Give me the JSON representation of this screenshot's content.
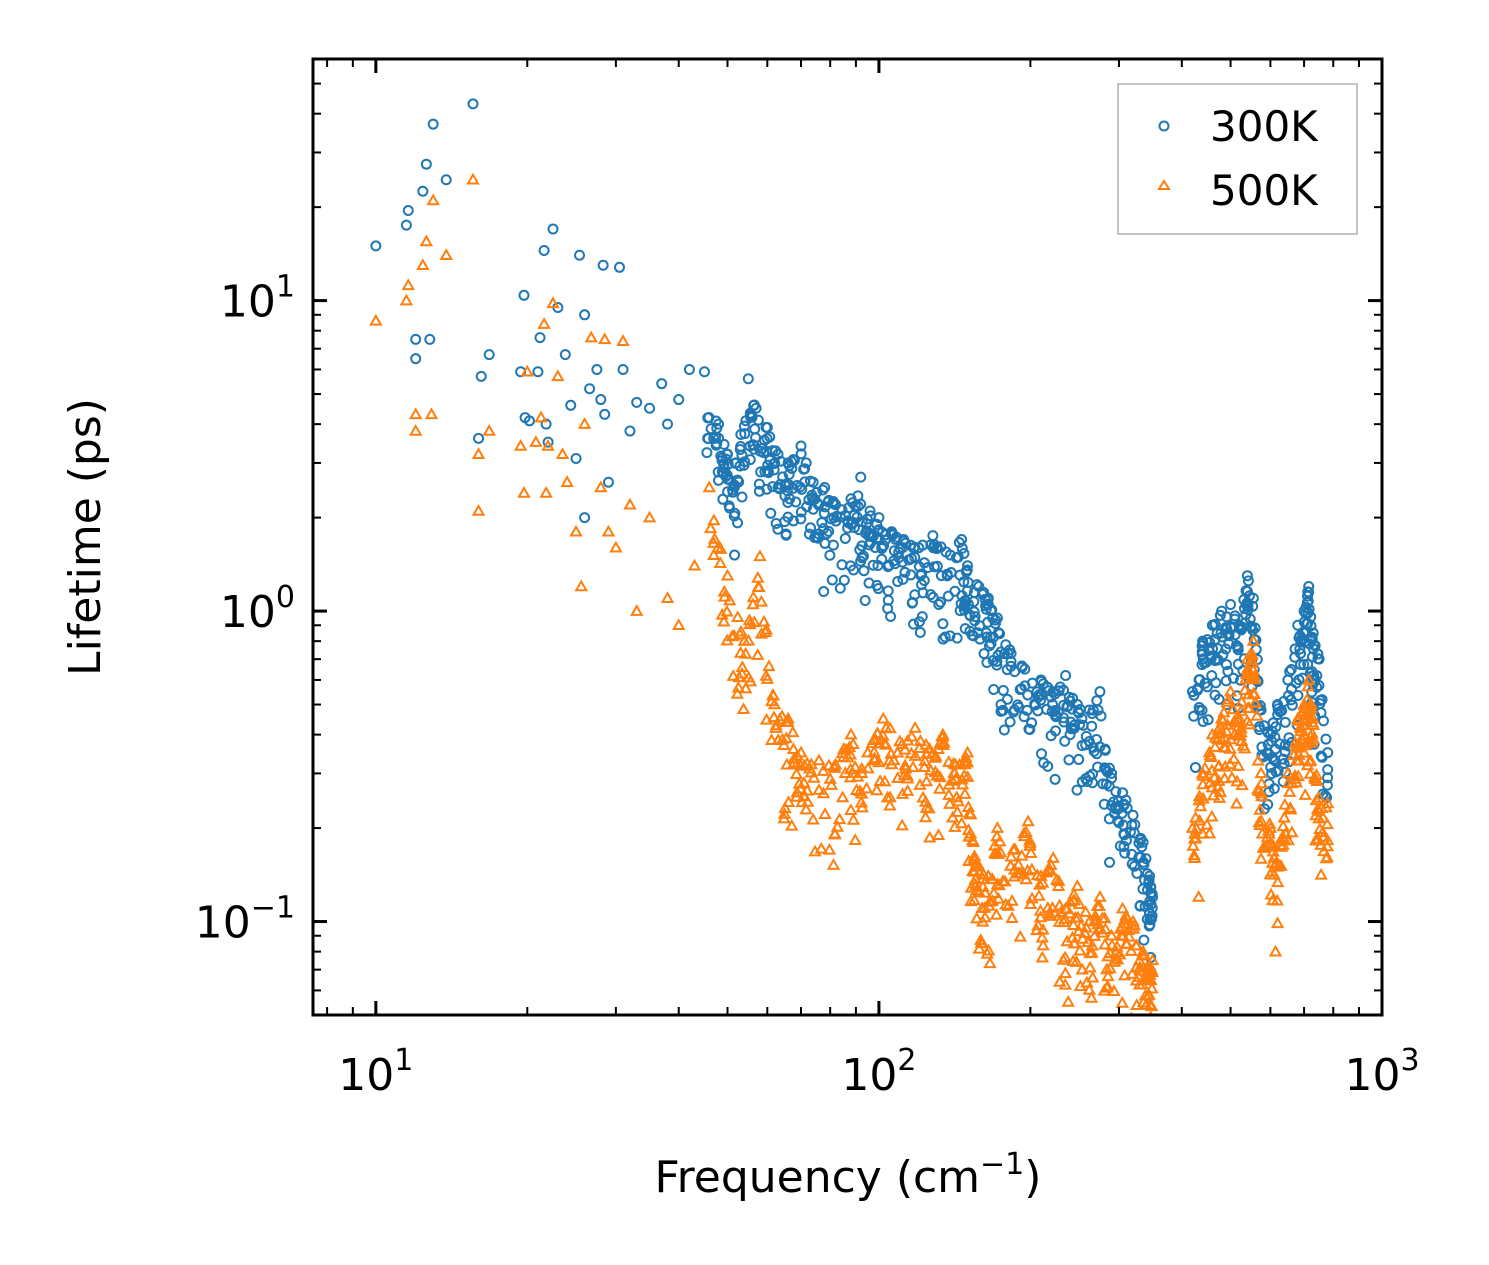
{
  "chart_data": {
    "type": "scatter",
    "title": "",
    "xlabel": "Frequency (cm",
    "xlabel_superscript": "−1",
    "xlabel_suffix": ")",
    "ylabel": "Lifetime (ps)",
    "xscale": "log",
    "yscale": "log",
    "xlim": [
      7.5,
      1000
    ],
    "ylim": [
      0.05,
      60
    ],
    "x_ticks": [
      {
        "value": 10,
        "base": "10",
        "exp": "1"
      },
      {
        "value": 100,
        "base": "10",
        "exp": "2"
      },
      {
        "value": 1000,
        "base": "10",
        "exp": "3"
      }
    ],
    "y_ticks": [
      {
        "value": 0.1,
        "base": "10",
        "exp": "−1"
      },
      {
        "value": 1,
        "base": "10",
        "exp": "0"
      },
      {
        "value": 10,
        "base": "10",
        "exp": "1"
      }
    ],
    "legend_position": "top-right",
    "series": [
      {
        "name": "300K",
        "marker": "circle",
        "color": "#1f77b4",
        "points": [
          [
            10.0,
            15.0
          ],
          [
            11.5,
            17.5
          ],
          [
            11.6,
            19.5
          ],
          [
            12.0,
            7.5
          ],
          [
            12.0,
            6.5
          ],
          [
            12.4,
            22.5
          ],
          [
            12.6,
            27.5
          ],
          [
            12.8,
            7.5
          ],
          [
            13.0,
            37.0
          ],
          [
            13.8,
            24.5
          ],
          [
            15.6,
            43.0
          ],
          [
            16.0,
            3.6
          ],
          [
            16.2,
            5.7
          ],
          [
            16.8,
            6.7
          ],
          [
            19.4,
            5.9
          ],
          [
            19.7,
            10.4
          ],
          [
            19.8,
            4.2
          ],
          [
            20.2,
            4.1
          ],
          [
            21.0,
            5.9
          ],
          [
            21.2,
            7.6
          ],
          [
            21.6,
            14.5
          ],
          [
            21.8,
            4.0
          ],
          [
            22.0,
            3.5
          ],
          [
            22.5,
            17.0
          ],
          [
            23.0,
            9.5
          ],
          [
            23.8,
            6.7
          ],
          [
            24.4,
            4.6
          ],
          [
            25.0,
            3.1
          ],
          [
            25.4,
            14.0
          ],
          [
            26.0,
            9.0
          ],
          [
            26.0,
            2.0
          ],
          [
            26.6,
            5.2
          ],
          [
            27.5,
            6.0
          ],
          [
            28.0,
            4.8
          ],
          [
            28.3,
            13.0
          ],
          [
            28.5,
            4.3
          ],
          [
            29.0,
            2.6
          ],
          [
            30.5,
            12.8
          ],
          [
            31.0,
            6.0
          ],
          [
            32.0,
            3.8
          ],
          [
            33.0,
            4.7
          ],
          [
            35.0,
            4.5
          ],
          [
            37.0,
            5.4
          ],
          [
            38.0,
            4.0
          ],
          [
            40.0,
            4.8
          ],
          [
            42.0,
            6.0
          ],
          [
            45.0,
            5.9
          ],
          [
            48.0,
            4.0
          ],
          [
            50.0,
            3.2
          ],
          [
            52.0,
            3.0
          ],
          [
            55.0,
            5.6
          ],
          [
            57.0,
            4.5
          ],
          [
            60.0,
            3.9
          ],
          [
            63.0,
            3.2
          ],
          [
            66.0,
            3.0
          ],
          [
            70.0,
            3.4
          ],
          [
            74.0,
            2.6
          ],
          [
            78.0,
            2.5
          ],
          [
            82.0,
            2.2
          ],
          [
            88.0,
            2.3
          ],
          [
            92.0,
            2.7
          ],
          [
            96.0,
            2.1
          ],
          [
            100.0,
            2.0
          ],
          [
            106.0,
            1.8
          ],
          [
            112.0,
            1.7
          ],
          [
            120.0,
            1.6
          ],
          [
            128.0,
            1.75
          ],
          [
            136.0,
            1.55
          ],
          [
            146.0,
            1.7
          ],
          [
            150.0,
            1.4
          ],
          [
            158.0,
            1.2
          ],
          [
            165.0,
            1.1
          ],
          [
            172.0,
            0.95
          ],
          [
            182.0,
            0.75
          ],
          [
            195.0,
            0.65
          ],
          [
            210.0,
            0.6
          ],
          [
            222.0,
            0.55
          ],
          [
            235.0,
            0.62
          ],
          [
            248.0,
            0.5
          ],
          [
            262.0,
            0.48
          ],
          [
            275.0,
            0.55
          ],
          [
            290.0,
            0.3
          ],
          [
            305.0,
            0.26
          ],
          [
            320.0,
            0.22
          ],
          [
            335.0,
            0.18
          ],
          [
            345.0,
            0.14
          ],
          [
            350.0,
            0.12
          ],
          [
            420.0,
            0.55
          ],
          [
            440.0,
            0.8
          ],
          [
            460.0,
            0.9
          ],
          [
            480.0,
            1.0
          ],
          [
            500.0,
            1.05
          ],
          [
            520.0,
            0.9
          ],
          [
            540.0,
            1.3
          ],
          [
            555.0,
            1.1
          ],
          [
            575.0,
            0.48
          ],
          [
            600.0,
            0.4
          ],
          [
            620.0,
            0.5
          ],
          [
            650.0,
            0.6
          ],
          [
            680.0,
            0.9
          ],
          [
            700.0,
            1.0
          ],
          [
            715.0,
            1.2
          ],
          [
            730.0,
            0.85
          ],
          [
            750.0,
            0.7
          ],
          [
            780.0,
            0.35
          ]
        ]
      },
      {
        "name": "500K",
        "marker": "triangle",
        "color": "#ff7f0e",
        "points": [
          [
            10.0,
            8.6
          ],
          [
            11.5,
            10.0
          ],
          [
            11.6,
            11.2
          ],
          [
            12.0,
            4.3
          ],
          [
            12.0,
            3.8
          ],
          [
            12.4,
            13.0
          ],
          [
            12.6,
            15.5
          ],
          [
            12.9,
            4.3
          ],
          [
            13.0,
            21.0
          ],
          [
            13.8,
            14.0
          ],
          [
            15.6,
            24.5
          ],
          [
            16.0,
            3.2
          ],
          [
            16.0,
            2.1
          ],
          [
            16.8,
            3.8
          ],
          [
            19.4,
            3.4
          ],
          [
            19.7,
            2.4
          ],
          [
            20.0,
            5.9
          ],
          [
            20.8,
            3.5
          ],
          [
            21.3,
            4.2
          ],
          [
            21.6,
            8.4
          ],
          [
            21.8,
            2.4
          ],
          [
            22.0,
            3.4
          ],
          [
            22.5,
            9.8
          ],
          [
            23.0,
            5.7
          ],
          [
            23.5,
            3.2
          ],
          [
            24.0,
            2.6
          ],
          [
            25.0,
            1.8
          ],
          [
            25.6,
            1.2
          ],
          [
            26.0,
            4.0
          ],
          [
            26.8,
            7.6
          ],
          [
            28.0,
            2.5
          ],
          [
            28.5,
            7.5
          ],
          [
            29.0,
            1.8
          ],
          [
            30.0,
            1.6
          ],
          [
            31.0,
            7.4
          ],
          [
            32.0,
            2.2
          ],
          [
            33.0,
            1.0
          ],
          [
            35.0,
            2.0
          ],
          [
            38.0,
            1.1
          ],
          [
            40.0,
            0.9
          ],
          [
            43.0,
            1.4
          ],
          [
            46.0,
            2.5
          ],
          [
            50.0,
            1.3
          ],
          [
            54.0,
            0.8
          ],
          [
            58.0,
            1.5
          ],
          [
            62.0,
            0.5
          ],
          [
            66.0,
            0.45
          ],
          [
            70.0,
            0.35
          ],
          [
            76.0,
            0.33
          ],
          [
            82.0,
            0.32
          ],
          [
            88.0,
            0.4
          ],
          [
            95.0,
            0.35
          ],
          [
            102.0,
            0.45
          ],
          [
            110.0,
            0.38
          ],
          [
            118.0,
            0.42
          ],
          [
            126.0,
            0.36
          ],
          [
            134.0,
            0.4
          ],
          [
            142.0,
            0.32
          ],
          [
            150.0,
            0.35
          ],
          [
            154.0,
            0.18
          ],
          [
            158.0,
            0.15
          ],
          [
            165.0,
            0.14
          ],
          [
            172.0,
            0.2
          ],
          [
            185.0,
            0.17
          ],
          [
            198.0,
            0.21
          ],
          [
            210.0,
            0.14
          ],
          [
            222.0,
            0.16
          ],
          [
            235.0,
            0.11
          ],
          [
            248.0,
            0.13
          ],
          [
            262.0,
            0.1
          ],
          [
            275.0,
            0.12
          ],
          [
            290.0,
            0.09
          ],
          [
            305.0,
            0.11
          ],
          [
            320.0,
            0.1
          ],
          [
            335.0,
            0.08
          ],
          [
            345.0,
            0.072
          ],
          [
            350.0,
            0.075
          ],
          [
            420.0,
            0.2
          ],
          [
            440.0,
            0.3
          ],
          [
            460.0,
            0.4
          ],
          [
            480.0,
            0.45
          ],
          [
            500.0,
            0.55
          ],
          [
            520.0,
            0.45
          ],
          [
            540.0,
            0.7
          ],
          [
            555.0,
            0.8
          ],
          [
            575.0,
            0.3
          ],
          [
            600.0,
            0.2
          ],
          [
            620.0,
            0.15
          ],
          [
            650.0,
            0.3
          ],
          [
            680.0,
            0.45
          ],
          [
            700.0,
            0.5
          ],
          [
            715.0,
            0.6
          ],
          [
            730.0,
            0.45
          ],
          [
            750.0,
            0.25
          ],
          [
            780.0,
            0.24
          ]
        ]
      }
    ]
  }
}
